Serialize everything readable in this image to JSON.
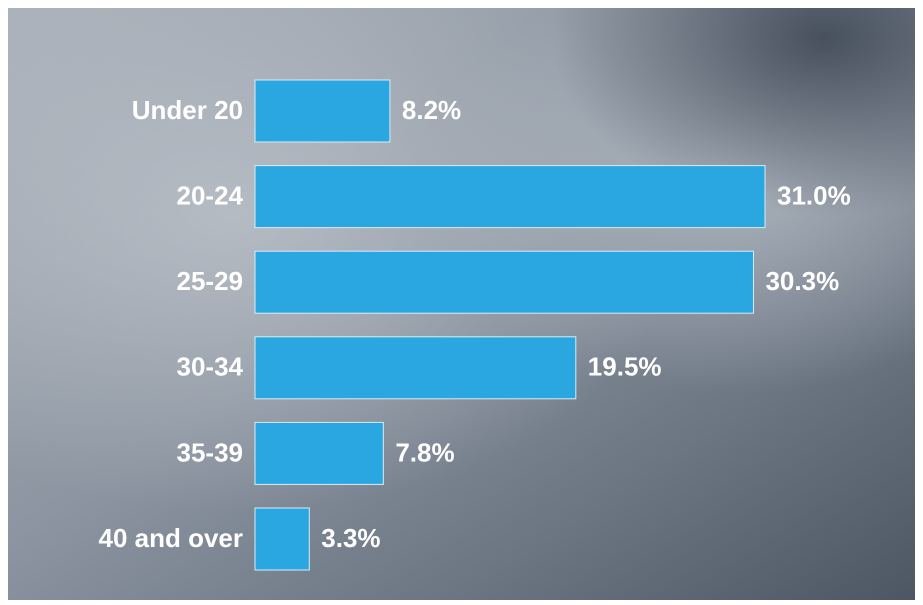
{
  "chart_data": {
    "type": "bar",
    "orientation": "horizontal",
    "categories": [
      "Under 20",
      "20-24",
      "25-29",
      "30-34",
      "35-39",
      "40 and over"
    ],
    "values": [
      8.2,
      31.0,
      30.3,
      19.5,
      7.8,
      3.3
    ],
    "value_labels": [
      "8.2%",
      "31.0%",
      "30.3%",
      "19.5%",
      "7.8%",
      "3.3%"
    ],
    "color": "#2aa7e1"
  }
}
